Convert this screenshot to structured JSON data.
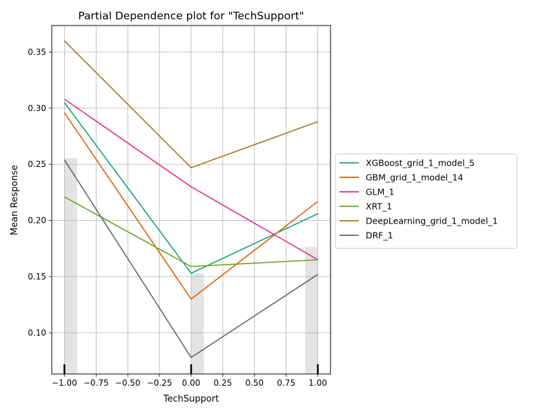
{
  "chart_data": {
    "type": "line",
    "title": "Partial Dependence plot for \"TechSupport\"",
    "xlabel": "TechSupport",
    "ylabel": "Mean Response",
    "xlim": [
      -1.1,
      1.1
    ],
    "ylim": [
      0.0633,
      0.3736
    ],
    "grid": true,
    "legend_position": "right",
    "x": [
      -1,
      0,
      1
    ],
    "x_ticks": [
      -1.0,
      -0.75,
      -0.5,
      -0.25,
      0.0,
      0.25,
      0.5,
      0.75,
      1.0
    ],
    "x_tick_labels": [
      "−1.00",
      "−0.75",
      "−0.50",
      "−0.25",
      "0.00",
      "0.25",
      "0.50",
      "0.75",
      "1.00"
    ],
    "y_ticks": [
      0.1,
      0.15,
      0.2,
      0.25,
      0.3,
      0.35
    ],
    "y_tick_labels": [
      "0.10",
      "0.15",
      "0.20",
      "0.25",
      "0.30",
      "0.35"
    ],
    "histogram": {
      "color": "#e3e3e3",
      "bars": [
        {
          "x_start": -1.0,
          "x_end": -0.9,
          "height": 0.2555
        },
        {
          "x_start": 0.0,
          "x_end": 0.1,
          "height": 0.153
        },
        {
          "x_start": 0.9,
          "x_end": 1.0,
          "height": 0.1765
        }
      ]
    },
    "rug_x": [
      -1,
      0,
      1
    ],
    "series": [
      {
        "name": "XGBoost_grid_1_model_5",
        "color": "#1b9e77",
        "values": [
          0.305,
          0.153,
          0.206
        ]
      },
      {
        "name": "GBM_grid_1_model_14",
        "color": "#d95f02",
        "values": [
          0.296,
          0.13,
          0.217
        ]
      },
      {
        "name": "GLM_1",
        "color": "#e7298a",
        "values": [
          0.308,
          0.23,
          0.165
        ]
      },
      {
        "name": "XRT_1",
        "color": "#66a61e",
        "values": [
          0.221,
          0.159,
          0.165
        ]
      },
      {
        "name": "DeepLearning_grid_1_model_1",
        "color": "#a6761d",
        "values": [
          0.36,
          0.247,
          0.288
        ]
      },
      {
        "name": "DRF_1",
        "color": "#666666",
        "values": [
          0.254,
          0.078,
          0.152
        ]
      }
    ]
  }
}
